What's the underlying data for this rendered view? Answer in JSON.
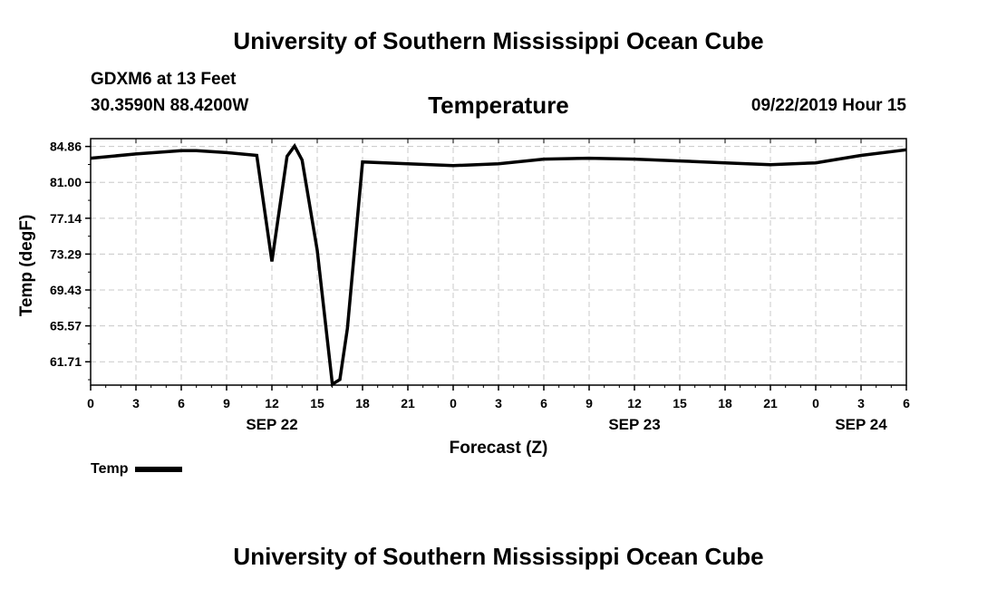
{
  "header": {
    "title": "University of Southern Mississippi Ocean Cube",
    "station": "GDXM6 at 13 Feet",
    "coords": "30.3590N 88.4200W",
    "datetime": "09/22/2019 Hour 15"
  },
  "footer": {
    "title": "University of Southern Mississippi Ocean Cube"
  },
  "legend": {
    "label": "Temp"
  },
  "chart_data": {
    "type": "line",
    "title": "Temperature",
    "xlabel": "Forecast (Z)",
    "ylabel": "Temp (degF)",
    "ylim": [
      59.2,
      85.7
    ],
    "xlim": [
      0,
      54
    ],
    "yticks": [
      "84.86",
      "81.00",
      "77.14",
      "73.29",
      "69.43",
      "65.57",
      "61.71"
    ],
    "xticks": [
      "0",
      "3",
      "6",
      "9",
      "12",
      "15",
      "18",
      "21",
      "0",
      "3",
      "6",
      "9",
      "12",
      "15",
      "18",
      "21",
      "0",
      "3",
      "6"
    ],
    "day_labels": [
      {
        "label": "SEP 22",
        "x": 12
      },
      {
        "label": "SEP 23",
        "x": 36
      },
      {
        "label": "SEP 24",
        "x": 51
      }
    ],
    "grid": true,
    "legend_position": "bottom-left",
    "series": [
      {
        "name": "Temp",
        "color": "#000000",
        "x": [
          0,
          3,
          6,
          7,
          9,
          11,
          12,
          13,
          13.5,
          14,
          15,
          16,
          16.5,
          17,
          18,
          21,
          24,
          27,
          30,
          33,
          36,
          39,
          42,
          45,
          48,
          51,
          54
        ],
        "y": [
          83.6,
          84.05,
          84.4,
          84.4,
          84.2,
          83.9,
          72.5,
          83.8,
          84.9,
          83.4,
          73.7,
          59.3,
          59.8,
          65.3,
          83.2,
          83.0,
          82.8,
          83.0,
          83.5,
          83.6,
          83.5,
          83.3,
          83.1,
          82.9,
          83.1,
          83.9,
          84.5
        ]
      }
    ]
  }
}
